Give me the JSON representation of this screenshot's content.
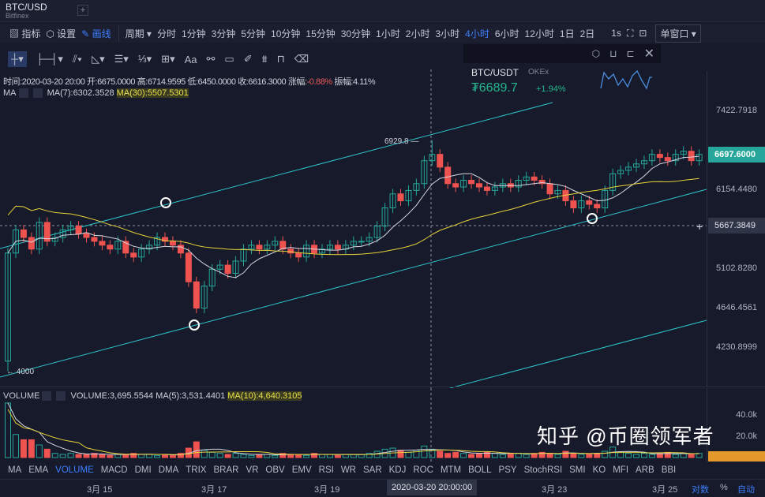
{
  "header": {
    "symbol": "BTC/USD",
    "exchange": "Bitfinex",
    "add": "+"
  },
  "toolbar": {
    "indicators": "指标",
    "settings": "设置",
    "draw": "画线",
    "period": "周期 ▾",
    "intervals": [
      "分时",
      "1分钟",
      "3分钟",
      "5分钟",
      "10分钟",
      "15分钟",
      "30分钟",
      "1小时",
      "2小时",
      "3小时",
      "4小时",
      "6小时",
      "12小时",
      "1日",
      "2日"
    ],
    "active_interval": "4小时",
    "refresh": "1s",
    "layout": "单窗口 ▾"
  },
  "drawtools": [
    "crosshair",
    "horizontal-ray",
    "parallel-lines",
    "angle",
    "fib-levels",
    "wave",
    "rect-plus",
    "Aa",
    "pattern",
    "ruler",
    "pencil",
    "grid",
    "lock",
    "trash"
  ],
  "info": {
    "time": "时间:2020-03-20 20:00",
    "open": "开:6675.0000",
    "high": "高:6714.9595",
    "low": "低:6450.0000",
    "close": "收:6616.3000",
    "chg_label": "涨幅:",
    "chg": "-0.88%",
    "amp": "振幅:4.11%"
  },
  "ma": {
    "label": "MA",
    "ma7": "MA(7):6302.3528",
    "ma30": "MA(30):5507.5301"
  },
  "widget": {
    "pair": "BTC/USDT",
    "exchange": "OKEx",
    "price": "₮6689.7",
    "change": "+1.94%"
  },
  "colors": {
    "up": "#26a69a",
    "down": "#ef5350",
    "ma7": "#d8d8e0",
    "ma30": "#e8d23a",
    "trend": "#2ec4c9",
    "accent": "#3d7fff"
  },
  "price_axis": {
    "labels": [
      "7422.7918",
      "6154.4480",
      "5667.3849",
      "5102.8280",
      "4646.4561",
      "4230.8999"
    ],
    "last": "6697.6000",
    "cross": "5667.3849",
    "cross_btn": "+"
  },
  "annotations": {
    "high": "6929.8",
    "low": "← 4000"
  },
  "volume": {
    "label": "VOLUME",
    "vol": "VOLUME:3,695.5544",
    "ma5": "MA(5):3,531.4401",
    "ma10": "MA(10):4,640.3105",
    "axis": [
      "40.0k",
      "20.0k"
    ]
  },
  "indicator_tabs": [
    "MA",
    "EMA",
    "VOLUME",
    "MACD",
    "DMI",
    "DMA",
    "TRIX",
    "BRAR",
    "VR",
    "OBV",
    "EMV",
    "RSI",
    "WR",
    "SAR",
    "KDJ",
    "ROC",
    "MTM",
    "BOLL",
    "PSY",
    "StochRSI",
    "SMI",
    "KO",
    "MFI",
    "ARB",
    "BBI"
  ],
  "time_axis": {
    "labels": [
      "3月 15",
      "3月 17",
      "3月 19",
      "3月 23",
      "3月 25"
    ],
    "cross": "2020-03-20 20:00:00",
    "log": "对数",
    "pct": "%",
    "auto": "自动"
  },
  "watermark": "知乎 @币圈领军者",
  "chart_data": {
    "type": "candlestick",
    "scale": "log",
    "ylim": [
      3950,
      7800
    ],
    "first_open": 4100,
    "closes": [
      5300,
      5600,
      5500,
      5350,
      5700,
      5450,
      5500,
      5600,
      5650,
      5550,
      5500,
      5450,
      5400,
      5350,
      5450,
      5300,
      5250,
      5350,
      5400,
      5500,
      5450,
      5400,
      5300,
      4950,
      4650,
      4900,
      5100,
      5150,
      5050,
      5200,
      5350,
      5400,
      5350,
      5400,
      5450,
      5350,
      5300,
      5250,
      5400,
      5300,
      5350,
      5400,
      5350,
      5400,
      5450,
      5450,
      5500,
      5650,
      5900,
      6100,
      6000,
      6150,
      6250,
      6600,
      6700,
      6500,
      6250,
      6200,
      6300,
      6250,
      6200,
      6150,
      6200,
      6250,
      6200,
      6300,
      6350,
      6300,
      6250,
      6100,
      6150,
      6000,
      5900,
      6000,
      5950,
      5900,
      6150,
      6400,
      6450,
      6500,
      6550,
      6600,
      6700,
      6650,
      6600,
      6700,
      6750,
      6600,
      6700
    ],
    "volumes_k": [
      52,
      22,
      17,
      17,
      12,
      8,
      4,
      3,
      4,
      3,
      3,
      4,
      3,
      2,
      3,
      3,
      4,
      3,
      3,
      2,
      3,
      2,
      4,
      9,
      15,
      7,
      5,
      4,
      3,
      4,
      3,
      2,
      3,
      3,
      2,
      4,
      3,
      3,
      2,
      4,
      3,
      3,
      2,
      3,
      3,
      3,
      4,
      6,
      8,
      9,
      7,
      5,
      7,
      11,
      8,
      6,
      4,
      5,
      4,
      3,
      4,
      5,
      4,
      3,
      4,
      4,
      3,
      4,
      5,
      4,
      3,
      6,
      4,
      3,
      3,
      4,
      6,
      10,
      5,
      4,
      3,
      4,
      3,
      4,
      5,
      3,
      4,
      3,
      4
    ]
  }
}
